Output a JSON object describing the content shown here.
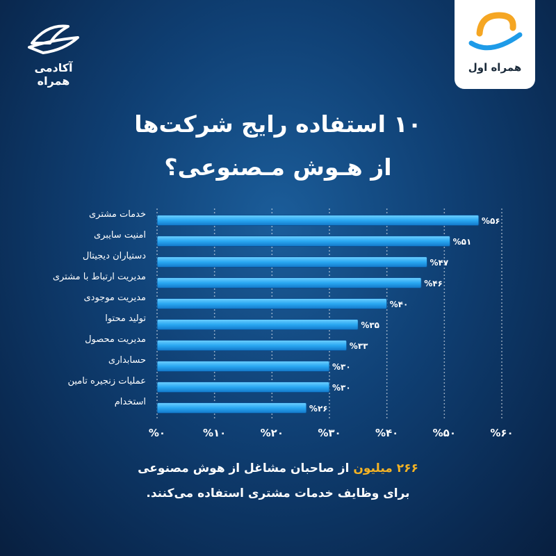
{
  "branding": {
    "left_wordmark": "آکادمی همراه",
    "right_wordmark": "همراه اول",
    "accent_orange": "#f5a623",
    "accent_blue": "#1e9be8"
  },
  "title": {
    "line1": "۱۰ استفاده رایج شرکت‌ها",
    "line2": "از هـوش مـصنوعی؟"
  },
  "chart_data": {
    "type": "bar",
    "orientation": "horizontal",
    "categories": [
      "خدمات مشتری",
      "امنیت سایبری",
      "دستیاران دیجیتال",
      "مدیریت ارتباط با مشتری",
      "مدیریت موجودی",
      "تولید محتوا",
      "مدیریت محصول",
      "حسابداری",
      "عملیات زنجیره تامین",
      "استخدام"
    ],
    "values": [
      56,
      51,
      47,
      46,
      40,
      35,
      33,
      30,
      30,
      26
    ],
    "value_labels": [
      "%۵۶",
      "%۵۱",
      "%۴۷",
      "%۴۶",
      "%۴۰",
      "%۳۵",
      "%۳۳",
      "%۳۰",
      "%۳۰",
      "%۲۶"
    ],
    "x_ticks": [
      0,
      10,
      20,
      30,
      40,
      50,
      60
    ],
    "x_tick_labels": [
      "%۰",
      "%۱۰",
      "%۲۰",
      "%۳۰",
      "%۴۰",
      "%۵۰",
      "%۶۰"
    ],
    "xlim": [
      0,
      60
    ],
    "grid": true,
    "bar_color": "#2aa8f2"
  },
  "footer": {
    "highlight": "۲۶۶ میلیون",
    "line1_rest": " از صاحبان مشاغل از هوش مصنوعی",
    "line2": "برای وظایف خدمات مشتری استفاده می‌کنند."
  }
}
